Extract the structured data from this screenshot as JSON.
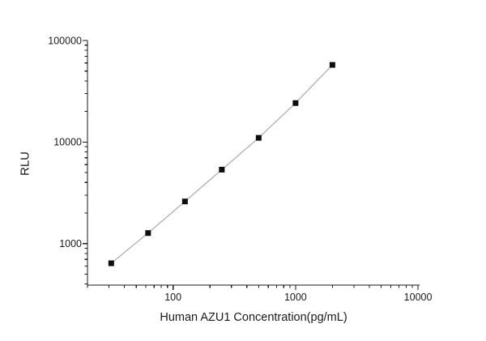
{
  "figure": {
    "background": "#ffffff"
  },
  "chart_data": {
    "type": "scatter",
    "subtype": "scatter-line-loglog",
    "title": "",
    "xlabel": "Human AZU1 Concentration(pg/mL)",
    "ylabel": "RLU",
    "xscale": "log",
    "yscale": "log",
    "xlim": [
      20,
      10300
    ],
    "ylim": [
      390,
      100000
    ],
    "x": [
      31.25,
      62.5,
      125,
      250,
      500,
      1000,
      2000
    ],
    "y": [
      640,
      1270,
      2600,
      5350,
      11000,
      24200,
      57500
    ],
    "x_ticks": {
      "values": [
        100,
        1000,
        10000
      ],
      "labels": [
        "100",
        "1000",
        "10000"
      ]
    },
    "y_ticks": {
      "values": [
        1000,
        10000,
        100000
      ],
      "labels": [
        "1000",
        "10000",
        "100000"
      ]
    },
    "minor_ticks": true,
    "tick_direction": "out",
    "grid": false,
    "legend": "none",
    "marker": "filled-square",
    "marker_size": 7,
    "colors": {
      "marker": "#0d0d0d",
      "line": "#a9a9a9",
      "axis": "#1a1a1a",
      "text": "#1a1a1a"
    }
  }
}
